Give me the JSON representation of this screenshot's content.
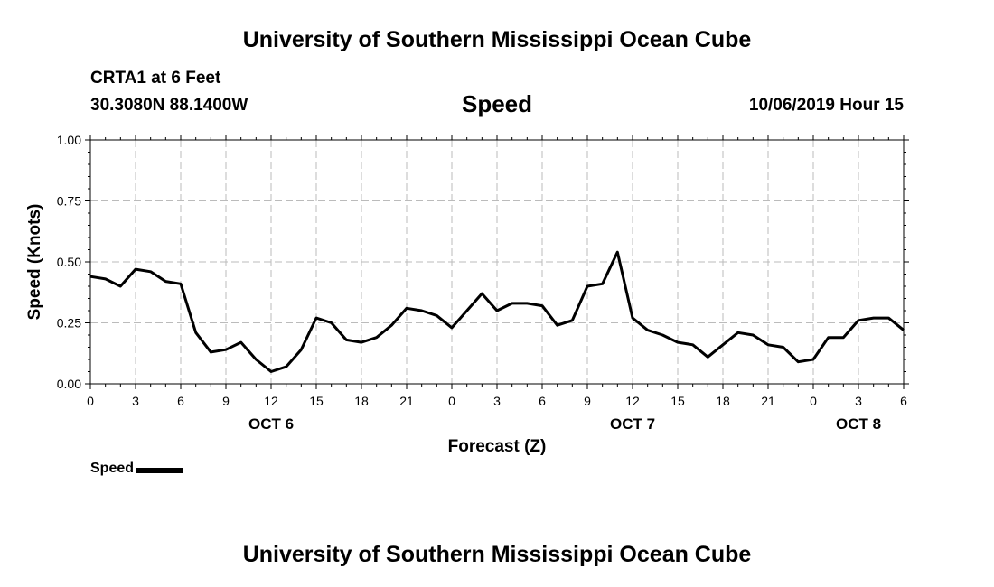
{
  "header": {
    "title": "University of Southern Mississippi Ocean Cube",
    "station": "CRTA1 at 6 Feet",
    "coords": "30.3080N 88.1400W",
    "variable": "Speed",
    "timestamp": "10/06/2019 Hour 15"
  },
  "footer": {
    "title": "University of Southern Mississippi Ocean Cube"
  },
  "legend": {
    "label": "Speed"
  },
  "colors": {
    "line": "#000000",
    "grid": "#bbbbbb",
    "axis": "#000000"
  },
  "chart_data": {
    "type": "line",
    "title": "Speed",
    "xlabel": "Forecast (Z)",
    "ylabel": "Speed (Knots)",
    "xlim": [
      0,
      54
    ],
    "ylim": [
      0,
      1
    ],
    "grid": true,
    "y_ticks": [
      {
        "value": 0,
        "label": "0.00"
      },
      {
        "value": 0.25,
        "label": "0.25"
      },
      {
        "value": 0.5,
        "label": "0.50"
      },
      {
        "value": 0.75,
        "label": "0.75"
      },
      {
        "value": 1,
        "label": "1.00"
      }
    ],
    "x_ticks": [
      {
        "value": 0,
        "label": "0"
      },
      {
        "value": 3,
        "label": "3"
      },
      {
        "value": 6,
        "label": "6"
      },
      {
        "value": 9,
        "label": "9"
      },
      {
        "value": 12,
        "label": "12"
      },
      {
        "value": 15,
        "label": "15"
      },
      {
        "value": 18,
        "label": "18"
      },
      {
        "value": 21,
        "label": "21"
      },
      {
        "value": 24,
        "label": "0"
      },
      {
        "value": 27,
        "label": "3"
      },
      {
        "value": 30,
        "label": "6"
      },
      {
        "value": 33,
        "label": "9"
      },
      {
        "value": 36,
        "label": "12"
      },
      {
        "value": 39,
        "label": "15"
      },
      {
        "value": 42,
        "label": "18"
      },
      {
        "value": 45,
        "label": "21"
      },
      {
        "value": 48,
        "label": "0"
      },
      {
        "value": 51,
        "label": "3"
      },
      {
        "value": 54,
        "label": "6"
      }
    ],
    "date_labels": [
      {
        "value": 12,
        "label": "OCT 6"
      },
      {
        "value": 36,
        "label": "OCT 7"
      },
      {
        "value": 51,
        "label": "OCT 8"
      }
    ],
    "series": [
      {
        "name": "Speed",
        "x": [
          0,
          1,
          2,
          3,
          4,
          5,
          6,
          7,
          8,
          9,
          10,
          11,
          12,
          13,
          14,
          15,
          16,
          17,
          18,
          19,
          20,
          21,
          22,
          23,
          24,
          25,
          26,
          27,
          28,
          29,
          30,
          31,
          32,
          33,
          34,
          35,
          36,
          37,
          38,
          39,
          40,
          41,
          42,
          43,
          44,
          45,
          46,
          47,
          48,
          49,
          50,
          51,
          52,
          53,
          54
        ],
        "values": [
          0.44,
          0.43,
          0.4,
          0.47,
          0.46,
          0.42,
          0.41,
          0.21,
          0.13,
          0.14,
          0.17,
          0.1,
          0.05,
          0.07,
          0.14,
          0.27,
          0.25,
          0.18,
          0.17,
          0.19,
          0.24,
          0.31,
          0.3,
          0.28,
          0.23,
          0.3,
          0.37,
          0.3,
          0.33,
          0.33,
          0.32,
          0.24,
          0.26,
          0.4,
          0.41,
          0.54,
          0.27,
          0.22,
          0.2,
          0.17,
          0.16,
          0.11,
          0.16,
          0.21,
          0.2,
          0.16,
          0.15,
          0.09,
          0.1,
          0.19,
          0.19,
          0.26,
          0.27,
          0.27,
          0.22
        ]
      }
    ]
  }
}
